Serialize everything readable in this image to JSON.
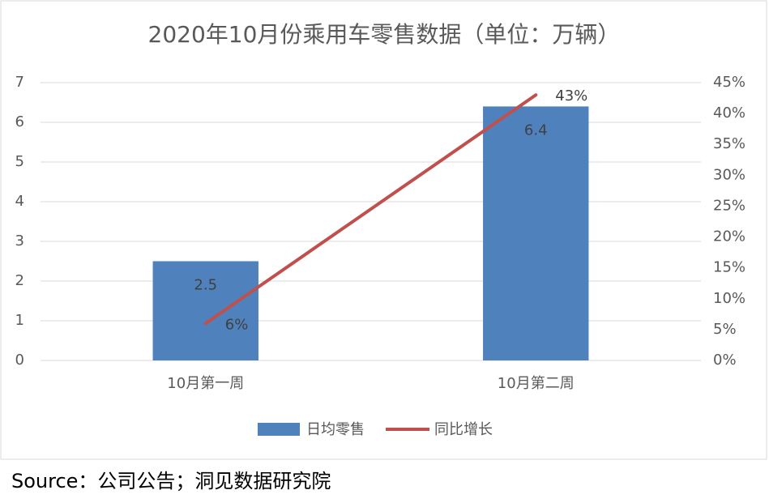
{
  "chart_data": {
    "type": "bar",
    "title": "2020年10月份乘用车零售数据（单位：万辆）",
    "source": "Source：公司公告；洞见数据研究院",
    "categories": [
      "10月第一周",
      "10月第二周"
    ],
    "series": [
      {
        "name": "日均零售",
        "type": "bar",
        "color": "#4f81bd",
        "values": [
          2.5,
          6.4
        ]
      },
      {
        "name": "同比增长",
        "type": "line",
        "axis": "y2",
        "color": "#c0504d",
        "values": [
          6,
          43
        ],
        "value_labels": [
          "6%",
          "43%"
        ]
      }
    ],
    "ylim": [
      0,
      7
    ],
    "yticks": [
      0,
      1,
      2,
      3,
      4,
      5,
      6,
      7
    ],
    "y2lim": [
      0,
      45
    ],
    "y2ticks": [
      {
        "value": 0,
        "label": "0%"
      },
      {
        "value": 5,
        "label": "5%"
      },
      {
        "value": 10,
        "label": "10%"
      },
      {
        "value": 15,
        "label": "15%"
      },
      {
        "value": 20,
        "label": "20%"
      },
      {
        "value": 25,
        "label": "25%"
      },
      {
        "value": 30,
        "label": "30%"
      },
      {
        "value": 35,
        "label": "35%"
      },
      {
        "value": 40,
        "label": "40%"
      },
      {
        "value": 45,
        "label": "45%"
      }
    ],
    "grid": true,
    "legend": "bottom"
  }
}
